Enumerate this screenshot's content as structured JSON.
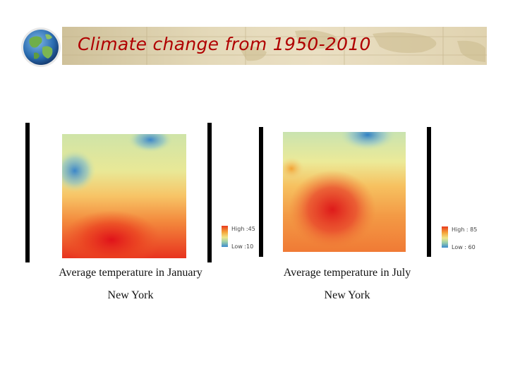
{
  "slide": {
    "title": "Climate change from 1950-2010",
    "colors": {
      "title": "#b00000",
      "band": "#e4d9b9"
    }
  },
  "maps": [
    {
      "caption": "Average temperature in January",
      "city": "New York",
      "legend": {
        "high": "High :45",
        "low": "Low :10"
      }
    },
    {
      "caption": "Average temperature in July",
      "city": "New York",
      "legend": {
        "high": "High : 85",
        "low": "Low : 60"
      }
    }
  ]
}
